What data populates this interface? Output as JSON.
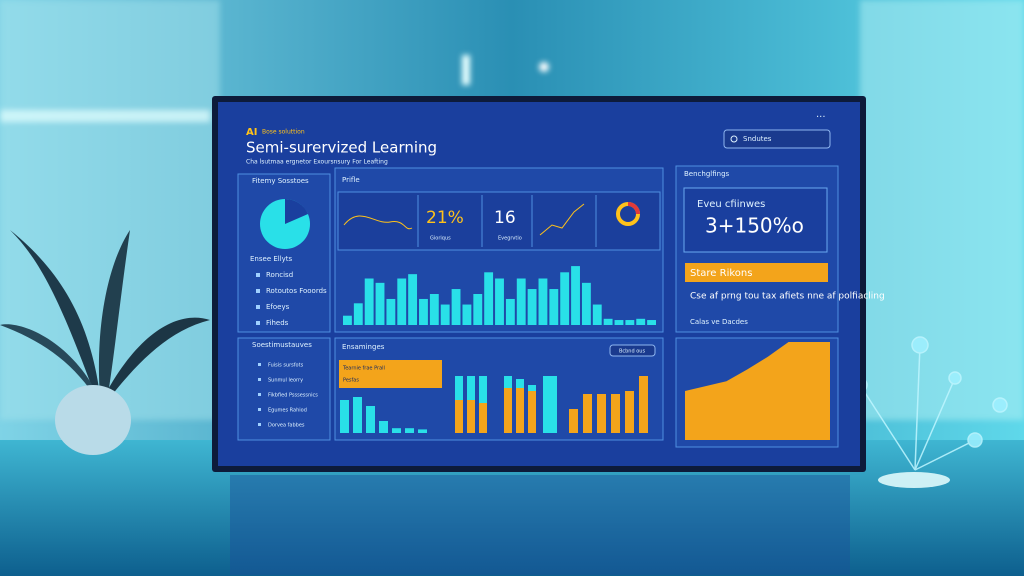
{
  "header": {
    "brand": "AI",
    "tagline": "Bose soluttion",
    "title": "Semi-surervized Learning",
    "subtitle": "Cha lsutmaa ergnetor Exoursnsury For Leafting",
    "search": "Sndutes"
  },
  "sidebar": {
    "title": "Fitemy Sosstoes",
    "section": "Ensee Ellyts",
    "items": [
      "Roncisd",
      "Rotoutos Fooords",
      "Efoeys",
      "Fiheds"
    ]
  },
  "sidebar2": {
    "title": "Soestimustauves",
    "items": [
      "Fuisis sursfots",
      "Sunmul leorry",
      "Fikbfied Psssessnics",
      "Egumes Rahiod",
      "Dorvea fabbes"
    ]
  },
  "overview": {
    "title": "Prifle",
    "kpis": [
      {
        "value": "21%",
        "label": "Gioriqus"
      },
      {
        "value": "16",
        "label": "Evegrvtio"
      }
    ],
    "values": [
      15,
      35,
      75,
      68,
      42,
      75,
      82,
      42,
      50,
      33,
      58,
      33,
      50,
      85,
      75,
      42,
      75,
      58,
      75,
      58,
      85,
      95,
      68,
      33,
      10,
      8,
      8,
      10,
      8
    ]
  },
  "comparison": {
    "title": "Ensaminges",
    "button": "Bcbnd ous",
    "tag": "Tearnie frae Prall",
    "tag2": "Pesfas",
    "bars": [
      55,
      60,
      45,
      20,
      8,
      8,
      6
    ],
    "stack_base": [
      55,
      55,
      50,
      75,
      75,
      70
    ],
    "stack_top": [
      40,
      40,
      45,
      20,
      15,
      10
    ],
    "tall": [
      95
    ],
    "columns": [
      40,
      65,
      65,
      65,
      70,
      95
    ]
  },
  "stats": {
    "title": "Benchglfings",
    "card_label": "Eveu cfiinwes",
    "card_value": "3+150%o"
  },
  "insight": {
    "title": "Stare Rikons",
    "text": "Cse af prng tou tax afiets nne af polfiacling",
    "link": "Calas ve Dacdes"
  },
  "area": {
    "values": [
      50,
      55,
      60,
      72,
      85,
      100,
      100,
      100
    ]
  }
}
